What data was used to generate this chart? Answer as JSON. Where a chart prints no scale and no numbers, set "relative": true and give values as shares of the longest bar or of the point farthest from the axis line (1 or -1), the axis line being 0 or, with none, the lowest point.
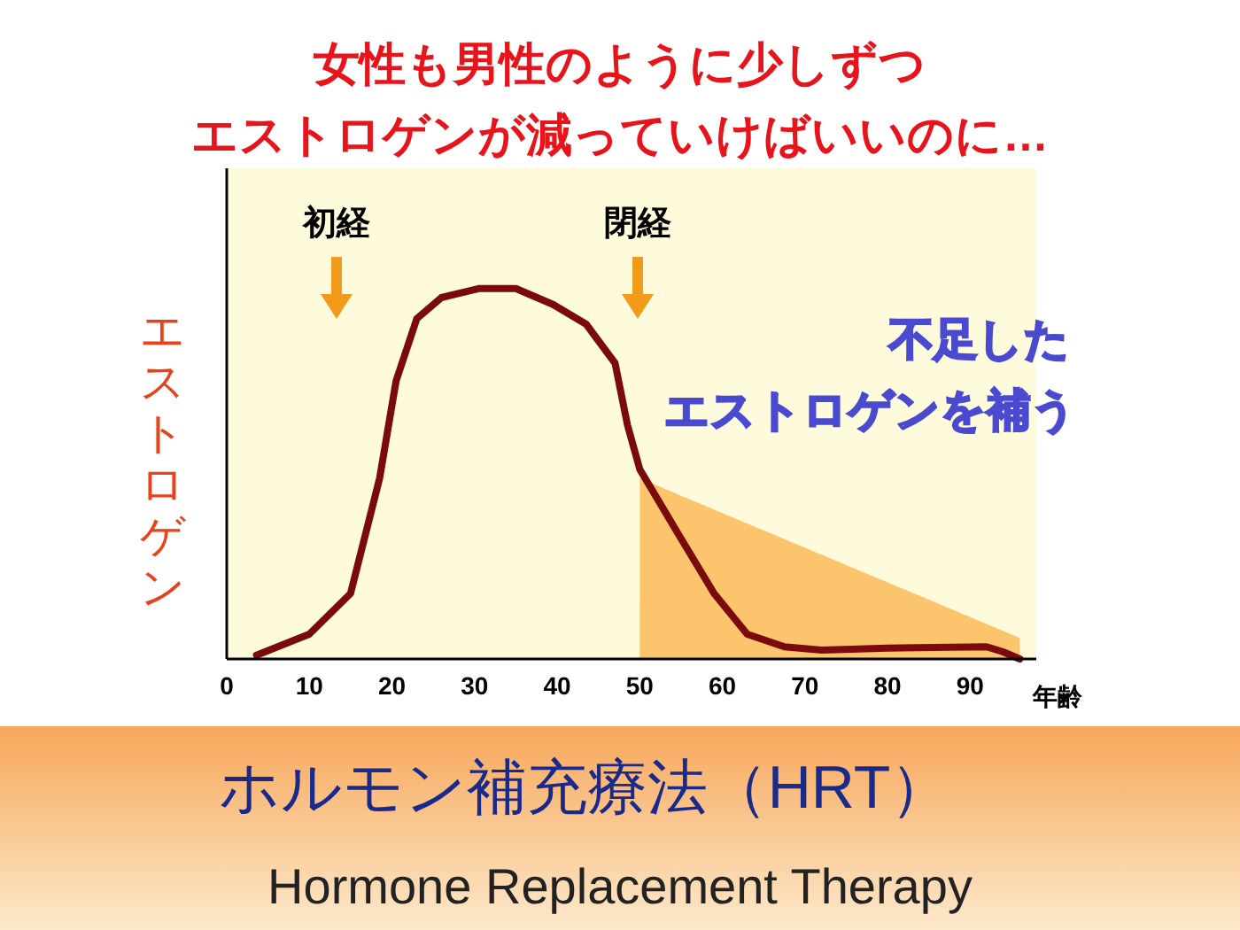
{
  "chart_data": {
    "type": "line",
    "title": "女性も男性のように少しずつ",
    "subtitle": "エストロゲンが減っていけばいいのに…",
    "xlabel": "年齢",
    "ylabel": "エストロゲン",
    "relative": true,
    "xlim": [
      0,
      98
    ],
    "xticks": [
      0,
      10,
      20,
      30,
      40,
      50,
      60,
      70,
      80,
      90
    ],
    "series": [
      {
        "type": "area",
        "color": "#fdc46e",
        "x": [
          50,
          96
        ],
        "values": [
          0.488,
          0.057
        ]
      },
      {
        "type": "line",
        "color": "#7b0a0c",
        "x": [
          3.6,
          10,
          15,
          18.5,
          20.5,
          23,
          26,
          30.5,
          35,
          39.5,
          43.5,
          47,
          48.5,
          50,
          54.5,
          59,
          63,
          67.5,
          72,
          80,
          92,
          94,
          96
        ],
        "values": [
          0.01,
          0.067,
          0.177,
          0.488,
          0.751,
          0.919,
          0.976,
          1.0,
          1.0,
          0.957,
          0.904,
          0.799,
          0.632,
          0.512,
          0.344,
          0.177,
          0.067,
          0.033,
          0.024,
          0.029,
          0.033,
          0.019,
          0.0
        ]
      }
    ],
    "annotations": [
      "初経",
      "閉経",
      "不足した",
      "エストロゲンを補う",
      "ホルモン補充療法（HRT）",
      "Hormone Replacement Therapy"
    ]
  }
}
